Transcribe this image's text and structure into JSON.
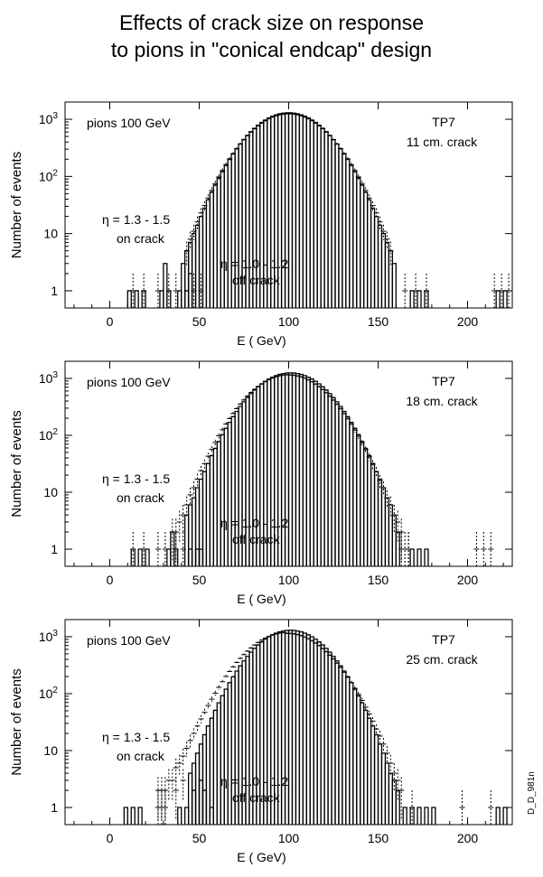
{
  "title_line1": "Effects of crack size on response",
  "title_line2": "to pions in \"conical endcap\" design",
  "corner_tag": "D_D_981n",
  "colors": {
    "ink": "#000000",
    "background": "#ffffff"
  },
  "chart_data": [
    {
      "type": "histogram",
      "panel": "11 cm. crack",
      "beam_label": "pions 100 GeV",
      "config_label": "TP7",
      "crack_label": "11 cm. crack",
      "xlabel": "E ( GeV)",
      "ylabel": "Number of events",
      "xlim": [
        -25,
        225
      ],
      "ylim_log": [
        0.5,
        2000
      ],
      "xticks": [
        0,
        50,
        100,
        150,
        200
      ],
      "xtick_labels": [
        "0",
        "50",
        "100",
        "150",
        "200"
      ],
      "yticks": [
        1,
        10,
        100,
        1000
      ],
      "ytick_labels": [
        "1",
        "10",
        "10²",
        "10³"
      ],
      "series": [
        {
          "name": "η = 1.3 - 1.5 on crack",
          "line1": "η = 1.3 - 1.5",
          "line2": "on crack",
          "style": "solid-step",
          "mu": 99,
          "sigma": 17,
          "amp": 1300,
          "tail": 0,
          "min": 40,
          "max": 158,
          "extra": [
            [
              10,
              1
            ],
            [
              14,
              1
            ],
            [
              18,
              1
            ],
            [
              28,
              1
            ],
            [
              30,
              3
            ],
            [
              32,
              1
            ],
            [
              38,
              1
            ],
            [
              42,
              1
            ],
            [
              44,
              2
            ],
            [
              168,
              1
            ],
            [
              172,
              1
            ],
            [
              176,
              1
            ],
            [
              216,
              1
            ],
            [
              220,
              1
            ]
          ]
        },
        {
          "name": "η = 1.0 - 1.2 off crack",
          "line1": "η = 1.0 - 1.2",
          "line2": "off crack",
          "style": "dotted-error",
          "mu": 99,
          "sigma": 17.3,
          "amp": 1250,
          "tail": 0,
          "min": 42,
          "max": 156,
          "extra": [
            [
              12,
              1
            ],
            [
              18,
              1
            ],
            [
              26,
              1
            ],
            [
              32,
              1
            ],
            [
              36,
              1
            ],
            [
              46,
              1
            ],
            [
              50,
              1
            ],
            [
              164,
              1
            ],
            [
              170,
              1
            ],
            [
              176,
              1
            ],
            [
              214,
              1
            ],
            [
              218,
              1
            ],
            [
              222,
              1
            ]
          ]
        }
      ]
    },
    {
      "type": "histogram",
      "panel": "18 cm. crack",
      "beam_label": "pions 100 GeV",
      "config_label": "TP7",
      "crack_label": "18 cm. crack",
      "xlabel": "E  ( GeV)",
      "ylabel": "Number of events",
      "xlim": [
        -25,
        225
      ],
      "ylim_log": [
        0.5,
        2000
      ],
      "xticks": [
        0,
        50,
        100,
        150,
        200
      ],
      "xtick_labels": [
        "0",
        "50",
        "100",
        "150",
        "200"
      ],
      "yticks": [
        1,
        10,
        100,
        1000
      ],
      "ytick_labels": [
        "1",
        "10",
        "10²",
        "10³"
      ],
      "series": [
        {
          "name": "η = 1.3 - 1.5 on crack",
          "line1": "η = 1.3 - 1.5",
          "line2": "on crack",
          "style": "solid-step",
          "mu": 100,
          "sigma": 17,
          "amp": 1250,
          "tail": 0,
          "min": 42,
          "max": 160,
          "extra": [
            [
              12,
              1
            ],
            [
              16,
              1
            ],
            [
              20,
              1
            ],
            [
              32,
              1
            ],
            [
              34,
              2
            ],
            [
              36,
              1
            ],
            [
              44,
              1
            ],
            [
              48,
              1
            ],
            [
              50,
              1
            ],
            [
              168,
              1
            ],
            [
              172,
              1
            ],
            [
              176,
              1
            ]
          ]
        },
        {
          "name": "η = 1.0 - 1.2 off crack",
          "line1": "η = 1.0 - 1.2",
          "line2": "off crack",
          "style": "dotted-error",
          "mu": 99,
          "sigma": 17.5,
          "amp": 1150,
          "tail": 0.012,
          "min": 34,
          "max": 168,
          "extra": [
            [
              12,
              1
            ],
            [
              18,
              1
            ],
            [
              26,
              1
            ],
            [
              30,
              1
            ],
            [
              36,
              1
            ],
            [
              40,
              1
            ],
            [
              162,
              1
            ],
            [
              166,
              1
            ],
            [
              204,
              1
            ],
            [
              208,
              1
            ],
            [
              212,
              1
            ]
          ]
        }
      ]
    },
    {
      "type": "histogram",
      "panel": "25 cm. crack",
      "beam_label": "pions 100 GeV",
      "config_label": "TP7",
      "crack_label": "25 cm. crack",
      "xlabel": "E  ( GeV)",
      "ylabel": "Number of events",
      "xlim": [
        -25,
        225
      ],
      "ylim_log": [
        0.5,
        2000
      ],
      "xticks": [
        0,
        50,
        100,
        150,
        200
      ],
      "xtick_labels": [
        "0",
        "50",
        "100",
        "150",
        "200"
      ],
      "yticks": [
        1,
        10,
        100,
        1000
      ],
      "ytick_labels": [
        "1",
        "10",
        "10²",
        "10³"
      ],
      "series": [
        {
          "name": "η = 1.3 - 1.5 on crack",
          "line1": "η = 1.3 - 1.5",
          "line2": "on crack",
          "style": "solid-step",
          "mu": 100,
          "sigma": 16.5,
          "amp": 1300,
          "tail": 0,
          "min": 44,
          "max": 160,
          "extra": [
            [
              8,
              1
            ],
            [
              12,
              1
            ],
            [
              16,
              1
            ],
            [
              38,
              1
            ],
            [
              42,
              1
            ],
            [
              46,
              2
            ],
            [
              50,
              3
            ],
            [
              52,
              2
            ],
            [
              56,
              1
            ],
            [
              164,
              1
            ],
            [
              168,
              1
            ],
            [
              172,
              1
            ],
            [
              176,
              1
            ],
            [
              180,
              1
            ],
            [
              216,
              1
            ],
            [
              220,
              1
            ]
          ]
        },
        {
          "name": "η = 1.0 - 1.2 off crack",
          "line1": "η = 1.0 - 1.2",
          "line2": "off crack",
          "style": "dotted-error",
          "mu": 98,
          "sigma": 18,
          "amp": 1150,
          "tail": 0.04,
          "min": 26,
          "max": 162,
          "extra": [
            [
              26,
              2
            ],
            [
              28,
              1
            ],
            [
              30,
              1
            ],
            [
              36,
              2
            ],
            [
              40,
              3
            ],
            [
              168,
              1
            ],
            [
              196,
              1
            ],
            [
              212,
              1
            ]
          ]
        }
      ]
    }
  ]
}
